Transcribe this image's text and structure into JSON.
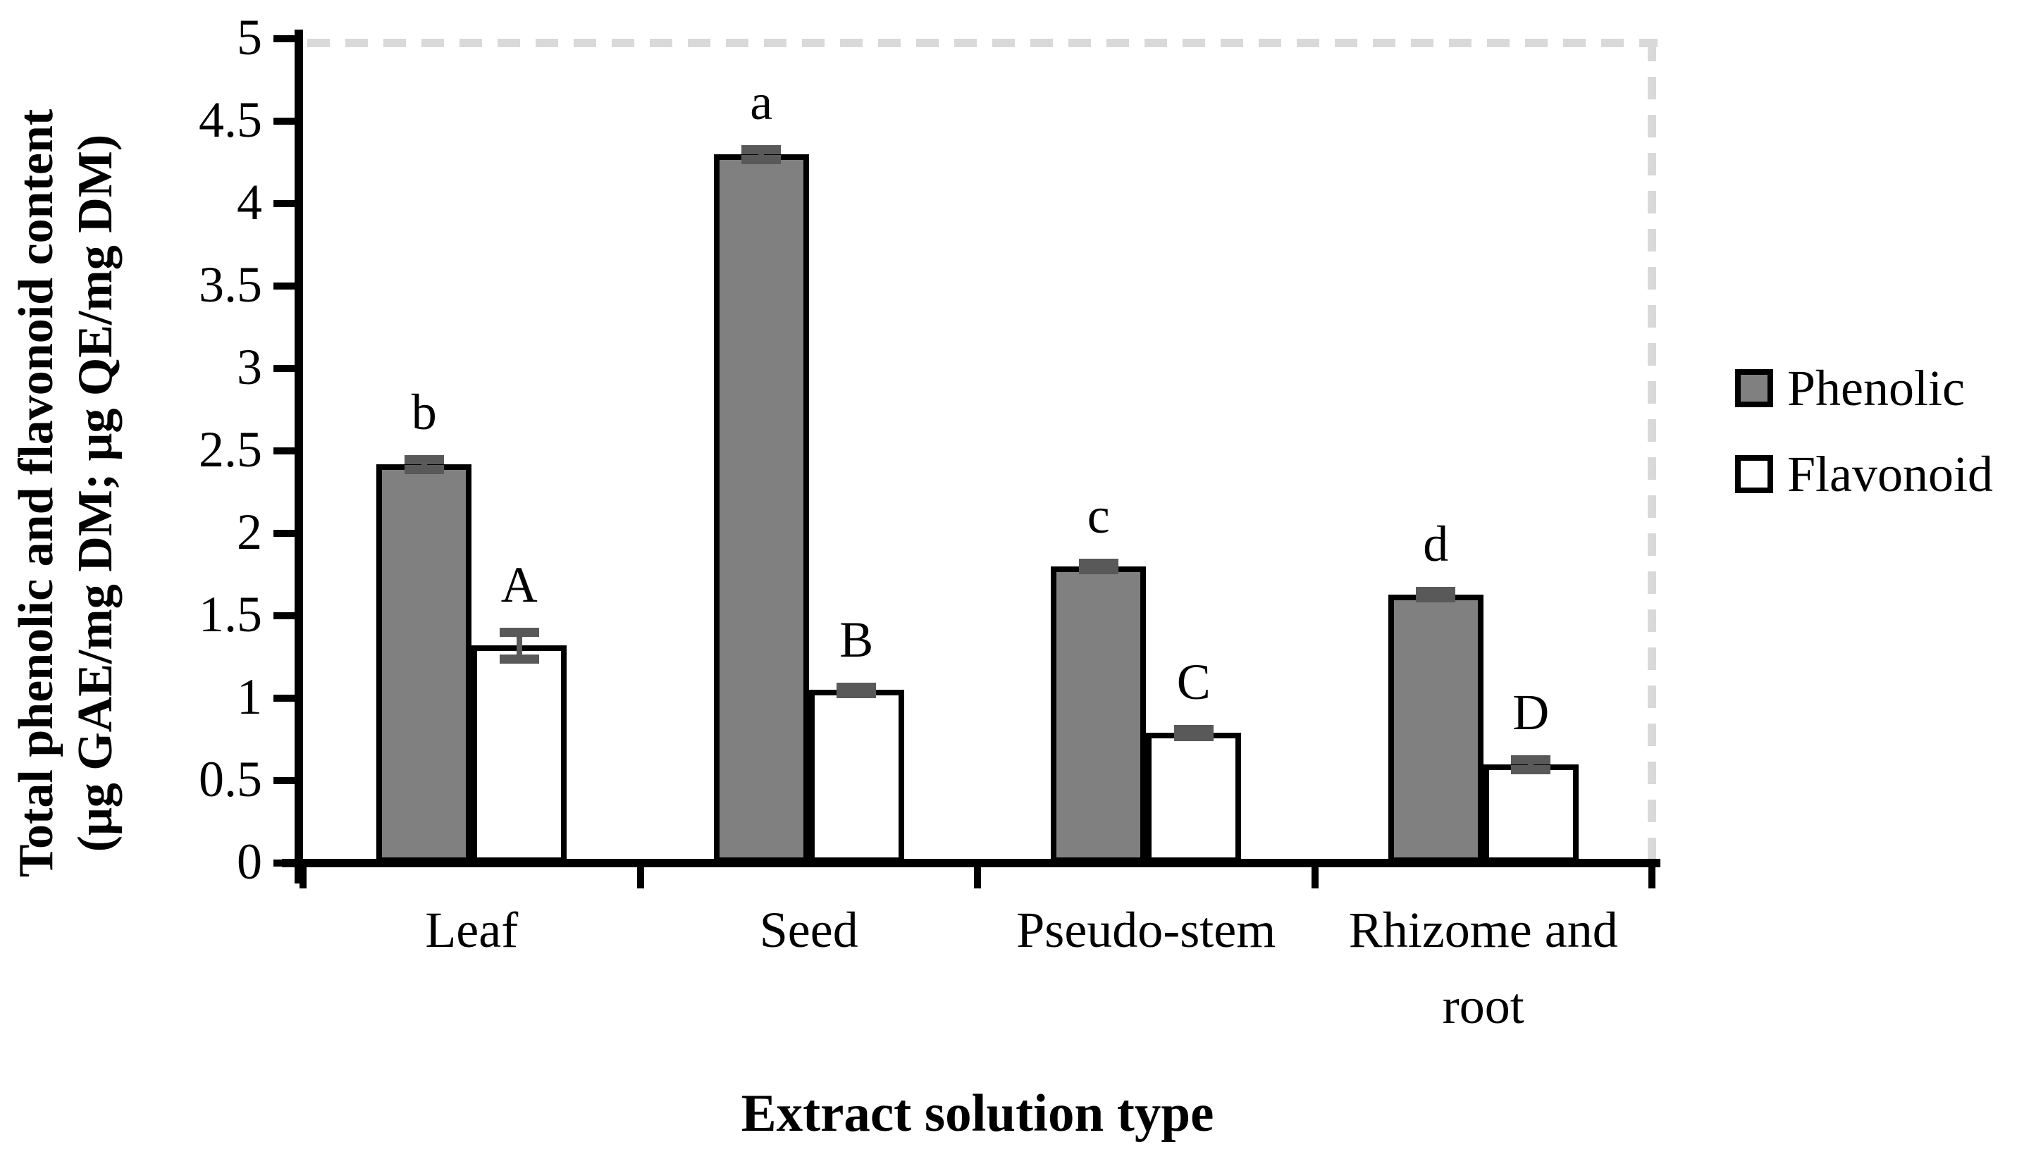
{
  "figure": {
    "background": "#ffffff",
    "plot_border_dash_color": "#d9d9d9",
    "axis_color": "#000000",
    "error_bar_color": "#595959"
  },
  "y_axis": {
    "title_line1": "Total phenolic and flavonoid content",
    "title_line2": "(μg GAE/mg DM; μg QE/mg DM)",
    "min": 0,
    "max": 5,
    "step": 0.5,
    "tick_labels": [
      "0",
      "0.5",
      "1",
      "1.5",
      "2",
      "2.5",
      "3",
      "3.5",
      "4",
      "4.5",
      "5"
    ]
  },
  "x_axis": {
    "title": "Extract solution type",
    "categories": [
      "Leaf",
      "Seed",
      "Pseudo-stem",
      "Rhizome and root"
    ]
  },
  "legend": {
    "position": "right",
    "entries": [
      {
        "label": "Phenolic",
        "swatch_color": "#808080"
      },
      {
        "label": "Flavonoid",
        "swatch_color": "#ffffff"
      }
    ]
  },
  "chart_data": {
    "type": "bar",
    "title": "",
    "xlabel": "Extract solution type",
    "ylabel": "Total phenolic and flavonoid content (μg GAE/mg DM; μg QE/mg DM)",
    "categories": [
      "Leaf",
      "Seed",
      "Pseudo-stem",
      "Rhizome and root"
    ],
    "series": [
      {
        "name": "Phenolic",
        "color": "#808080",
        "values": [
          2.42,
          4.3,
          1.8,
          1.63
        ],
        "errors": [
          0.03,
          0.03,
          0.02,
          0.02
        ],
        "sig_letters": [
          "b",
          "a",
          "c",
          "d"
        ]
      },
      {
        "name": "Flavonoid",
        "color": "#ffffff",
        "values": [
          1.32,
          1.05,
          0.79,
          0.6
        ],
        "errors": [
          0.08,
          0.02,
          0.02,
          0.03
        ],
        "sig_letters": [
          "A",
          "B",
          "C",
          "D"
        ]
      }
    ],
    "ylim": [
      0,
      5
    ],
    "ytick_step": 0.5,
    "grid": false,
    "legend_position": "right"
  }
}
